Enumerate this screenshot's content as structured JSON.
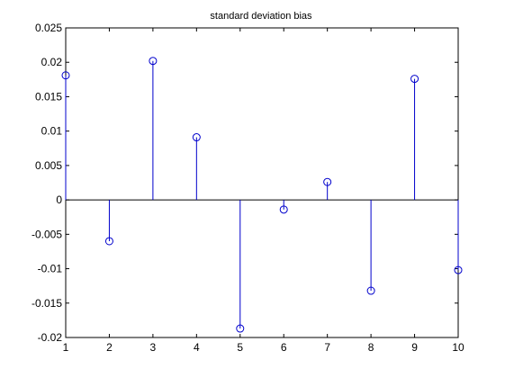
{
  "chart_data": {
    "type": "stem",
    "title": "standard deviation bias",
    "xlabel": "",
    "ylabel": "",
    "xlim": [
      1,
      10
    ],
    "ylim": [
      -0.02,
      0.025
    ],
    "grid": false,
    "x": [
      1,
      2,
      3,
      4,
      5,
      6,
      7,
      8,
      9,
      10
    ],
    "y": [
      0.0181,
      -0.006,
      0.0202,
      0.0091,
      -0.0187,
      -0.0014,
      0.0026,
      -0.0132,
      0.0176,
      -0.0102
    ],
    "x_ticks": [
      "1",
      "2",
      "3",
      "4",
      "5",
      "6",
      "7",
      "8",
      "9",
      "10"
    ],
    "y_ticks": [
      {
        "value": 0.025,
        "label": "0.025"
      },
      {
        "value": 0.02,
        "label": "0.02"
      },
      {
        "value": 0.015,
        "label": "0.015"
      },
      {
        "value": 0.01,
        "label": "0.01"
      },
      {
        "value": 0.005,
        "label": "0.005"
      },
      {
        "value": 0,
        "label": "0"
      },
      {
        "value": -0.005,
        "label": "-0.005"
      },
      {
        "value": -0.01,
        "label": "-0.01"
      },
      {
        "value": -0.015,
        "label": "-0.015"
      },
      {
        "value": -0.02,
        "label": "-0.02"
      }
    ],
    "marker": "open-circle",
    "series_color": "#0000cc",
    "baseline_color": "#000000",
    "axis_color": "#000000"
  }
}
